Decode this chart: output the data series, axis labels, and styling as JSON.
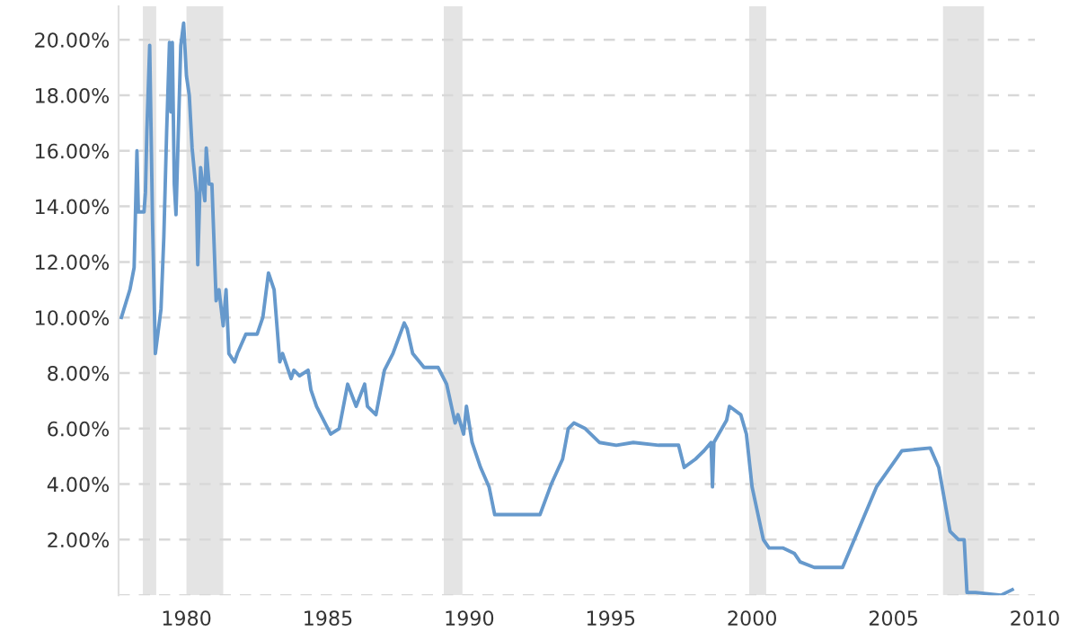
{
  "chart_data": {
    "type": "line",
    "x": [
      1977.7,
      1978.0,
      1978.15,
      1978.25,
      1978.3,
      1978.5,
      1978.55,
      1978.6,
      1978.7,
      1978.8,
      1978.9,
      1979.1,
      1979.2,
      1979.3,
      1979.4,
      1979.45,
      1979.5,
      1979.57,
      1979.63,
      1979.8,
      1979.9,
      1980.0,
      1980.1,
      1980.2,
      1980.35,
      1980.4,
      1980.5,
      1980.65,
      1980.7,
      1980.8,
      1980.9,
      1981.05,
      1981.15,
      1981.3,
      1981.4,
      1981.5,
      1981.7,
      1981.8,
      1982.1,
      1982.5,
      1982.7,
      1982.9,
      1983.1,
      1983.3,
      1983.4,
      1983.7,
      1983.8,
      1984.0,
      1984.3,
      1984.4,
      1984.6,
      1984.9,
      1985.1,
      1985.4,
      1985.7,
      1986.0,
      1986.3,
      1986.4,
      1986.7,
      1987.0,
      1987.3,
      1987.7,
      1987.8,
      1988.0,
      1988.4,
      1988.9,
      1989.2,
      1989.5,
      1989.6,
      1989.8,
      1989.9,
      1990.1,
      1990.4,
      1990.7,
      1990.9,
      1991.2,
      1991.6,
      1992.0,
      1992.5,
      1992.9,
      1993.3,
      1993.5,
      1993.7,
      1994.1,
      1994.6,
      1995.2,
      1995.8,
      1996.7,
      1997.4,
      1997.6,
      1998.0,
      1998.3,
      1998.55,
      1998.6,
      1998.65,
      1999.1,
      1999.2,
      1999.6,
      1999.8,
      2000.0,
      2000.4,
      2000.6,
      2001.1,
      2001.5,
      2001.7,
      2002.2,
      2003.2,
      2004.4,
      2005.3,
      2006.3,
      2006.6,
      2007.0,
      2007.3,
      2007.5,
      2007.6,
      2007.9,
      2008.8,
      2009.2
    ],
    "series": [
      {
        "color": "#6699cc",
        "values": [
          10.0,
          11.0,
          11.8,
          16.0,
          13.8,
          13.8,
          14.5,
          16.7,
          19.8,
          13.5,
          8.7,
          10.3,
          12.9,
          16.7,
          19.9,
          17.4,
          19.9,
          14.8,
          13.7,
          19.8,
          20.6,
          18.7,
          18.0,
          16.1,
          14.5,
          11.9,
          15.4,
          14.2,
          16.1,
          14.8,
          14.8,
          10.6,
          11.0,
          9.7,
          11.0,
          8.7,
          8.4,
          8.7,
          9.4,
          9.4,
          10.0,
          11.6,
          11.0,
          8.4,
          8.7,
          7.8,
          8.1,
          7.9,
          8.1,
          7.4,
          6.8,
          6.2,
          5.8,
          6.0,
          7.6,
          6.8,
          7.6,
          6.8,
          6.5,
          8.1,
          8.7,
          9.8,
          9.6,
          8.7,
          8.2,
          8.2,
          7.6,
          6.2,
          6.5,
          5.8,
          6.8,
          5.5,
          4.6,
          3.9,
          2.9,
          2.9,
          2.9,
          2.9,
          2.9,
          4.0,
          4.9,
          6.0,
          6.2,
          6.0,
          5.5,
          5.4,
          5.5,
          5.4,
          5.4,
          4.6,
          4.9,
          5.2,
          5.5,
          3.9,
          5.5,
          6.3,
          6.8,
          6.5,
          5.8,
          3.9,
          2.0,
          1.7,
          1.7,
          1.5,
          1.2,
          1.0,
          1.0,
          3.9,
          5.2,
          5.3,
          4.6,
          2.3,
          2.0,
          2.0,
          0.1,
          0.1,
          0.0,
          0.2
        ]
      }
    ],
    "xlim": [
      1977.6,
      2010
    ],
    "xticks": [
      1980,
      1985,
      1990,
      1995,
      2000,
      2005,
      2010
    ],
    "ylim": [
      0,
      21.2
    ],
    "yticks": [
      {
        "value": 0,
        "label": null
      },
      {
        "value": 2,
        "label": "2.00%"
      },
      {
        "value": 4,
        "label": "4.00%"
      },
      {
        "value": 6,
        "label": "6.00%"
      },
      {
        "value": 8,
        "label": "8.00%"
      },
      {
        "value": 10,
        "label": "10.00%"
      },
      {
        "value": 12,
        "label": "12.00%"
      },
      {
        "value": 14,
        "label": "14.00%"
      },
      {
        "value": 16,
        "label": "16.00%"
      },
      {
        "value": 18,
        "label": "18.00%"
      },
      {
        "value": 20,
        "label": "20.00%"
      }
    ],
    "bands": [
      {
        "axis": "x",
        "from": 1978.46,
        "to": 1978.93,
        "color": "#e4e4e4"
      },
      {
        "axis": "x",
        "from": 1980.0,
        "to": 1981.3,
        "color": "#e4e4e4"
      },
      {
        "axis": "x",
        "from": 1989.1,
        "to": 1989.76,
        "color": "#e4e4e4"
      },
      {
        "axis": "x",
        "from": 1999.9,
        "to": 2000.5,
        "color": "#e4e4e4"
      },
      {
        "axis": "x",
        "from": 2006.75,
        "to": 2008.2,
        "color": "#e4e4e4"
      }
    ],
    "grid": "y",
    "line_style": "solid",
    "marker": "none"
  }
}
